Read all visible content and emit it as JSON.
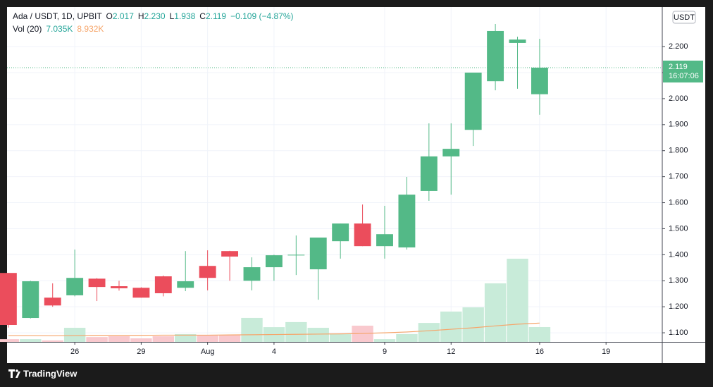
{
  "header": {
    "symbol": "Ada / USDT, 1D, UPBIT",
    "open_label": "O",
    "open": "2.017",
    "high_label": "H",
    "high": "2.230",
    "low_label": "L",
    "low": "1.938",
    "close_label": "C",
    "close": "2.119",
    "change": "−0.109 (−4.87%)",
    "volume_label": "Vol (20)",
    "volume": "7.035K",
    "volume_ma": "8.932K"
  },
  "currency_badge": "USDT",
  "last_price": {
    "price": "2.119",
    "countdown": "16:07:06"
  },
  "footer": {
    "brand": "TradingView"
  },
  "chart_data": {
    "type": "candlestick",
    "up_color": "#53b987",
    "down_color": "#eb4d5c",
    "volume_up_color": "#c8ebd9",
    "volume_down_color": "#f9c9ce",
    "volume_ma_color": "#f6a56a",
    "open": [
      1.33,
      1.157,
      1.235,
      1.244,
      1.308,
      1.279,
      1.273,
      1.317,
      1.273,
      1.357,
      1.414,
      1.3,
      1.352,
      1.398,
      1.344,
      1.452,
      1.52,
      1.433,
      1.428,
      1.645,
      1.778,
      1.88,
      2.067,
      2.214,
      2.017
    ],
    "high": [
      1.33,
      1.3,
      1.29,
      1.42,
      1.31,
      1.3,
      1.275,
      1.32,
      1.414,
      1.417,
      1.415,
      1.39,
      1.4,
      1.474,
      1.466,
      1.52,
      1.593,
      1.588,
      1.699,
      1.905,
      1.905,
      2.1,
      2.287,
      2.238,
      2.23
    ],
    "low": [
      1.12,
      1.155,
      1.2,
      1.24,
      1.222,
      1.262,
      1.235,
      1.24,
      1.26,
      1.263,
      1.3,
      1.263,
      1.3,
      1.322,
      1.227,
      1.385,
      1.433,
      1.385,
      1.42,
      1.607,
      1.631,
      1.818,
      2.032,
      2.038,
      1.938
    ],
    "close": [
      1.13,
      1.298,
      1.205,
      1.311,
      1.276,
      1.271,
      1.235,
      1.252,
      1.298,
      1.311,
      1.393,
      1.352,
      1.398,
      1.4,
      1.466,
      1.52,
      1.433,
      1.479,
      1.631,
      1.778,
      1.807,
      2.1,
      2.26,
      2.227,
      2.119
    ],
    "volume": [
      1.3,
      1.3,
      0.7,
      6.7,
      2.3,
      2.7,
      1.7,
      2.7,
      3.7,
      3.3,
      3.3,
      11.4,
      7.0,
      9.4,
      6.7,
      4.0,
      7.7,
      1.3,
      3.7,
      9.0,
      14.4,
      16.4,
      27.8,
      39.5,
      7.035
    ],
    "volume_ma": [
      3.0,
      3.0,
      2.9,
      3.0,
      3.1,
      3.1,
      3.1,
      3.2,
      3.2,
      3.2,
      3.3,
      3.4,
      3.5,
      3.6,
      3.7,
      3.8,
      4.0,
      4.3,
      4.7,
      5.3,
      6.0,
      6.7,
      7.6,
      8.4,
      8.932
    ],
    "xlim": [
      -0.06,
      29.54
    ],
    "xticks": [
      {
        "value": 3,
        "label": "26"
      },
      {
        "value": 6,
        "label": "29"
      },
      {
        "value": 9,
        "label": "Aug"
      },
      {
        "value": 12,
        "label": "4"
      },
      {
        "value": 17,
        "label": "9"
      },
      {
        "value": 20,
        "label": "12"
      },
      {
        "value": 24,
        "label": "16"
      },
      {
        "value": 27,
        "label": "19"
      }
    ],
    "ylim": [
      1.065,
      2.352
    ],
    "yticks": [
      {
        "value": 1.1,
        "label": "1.100"
      },
      {
        "value": 1.2,
        "label": "1.200"
      },
      {
        "value": 1.3,
        "label": "1.300"
      },
      {
        "value": 1.4,
        "label": "1.400"
      },
      {
        "value": 1.5,
        "label": "1.500"
      },
      {
        "value": 1.6,
        "label": "1.600"
      },
      {
        "value": 1.7,
        "label": "1.700"
      },
      {
        "value": 1.8,
        "label": "1.800"
      },
      {
        "value": 1.9,
        "label": "1.900"
      },
      {
        "value": 2.0,
        "label": "2.000"
      },
      {
        "value": 2.1,
        "label": "2.100"
      },
      {
        "value": 2.2,
        "label": "2.200"
      }
    ],
    "volume_lim": [
      0,
      159
    ],
    "grid": true
  }
}
